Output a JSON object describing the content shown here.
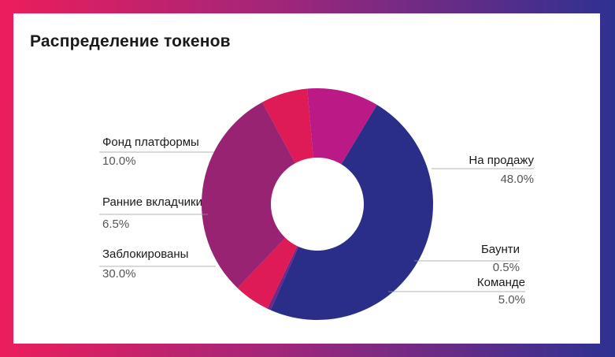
{
  "chart_data": {
    "type": "pie",
    "style": "donut",
    "title": "Распределение токенов",
    "slices": [
      {
        "label": "На продажу",
        "value": 48.0,
        "value_label": "48.0%",
        "color": "#2e3192"
      },
      {
        "label": "Баунти",
        "value": 0.5,
        "value_label": "0.5%",
        "color": "#7b2a8e"
      },
      {
        "label": "Команде",
        "value": 5.0,
        "value_label": "5.0%",
        "color": "#ec1d5c"
      },
      {
        "label": "Заблокированы",
        "value": 30.0,
        "value_label": "30.0%",
        "color": "#a1267a"
      },
      {
        "label": "Ранние вкладчики",
        "value": 6.5,
        "value_label": "6.5%",
        "color": "#ec1d5c"
      },
      {
        "label": "Фонд платформы",
        "value": 10.0,
        "value_label": "10.0%",
        "color": "#c71b8f"
      }
    ],
    "legend": "leader-line labels around chart"
  }
}
